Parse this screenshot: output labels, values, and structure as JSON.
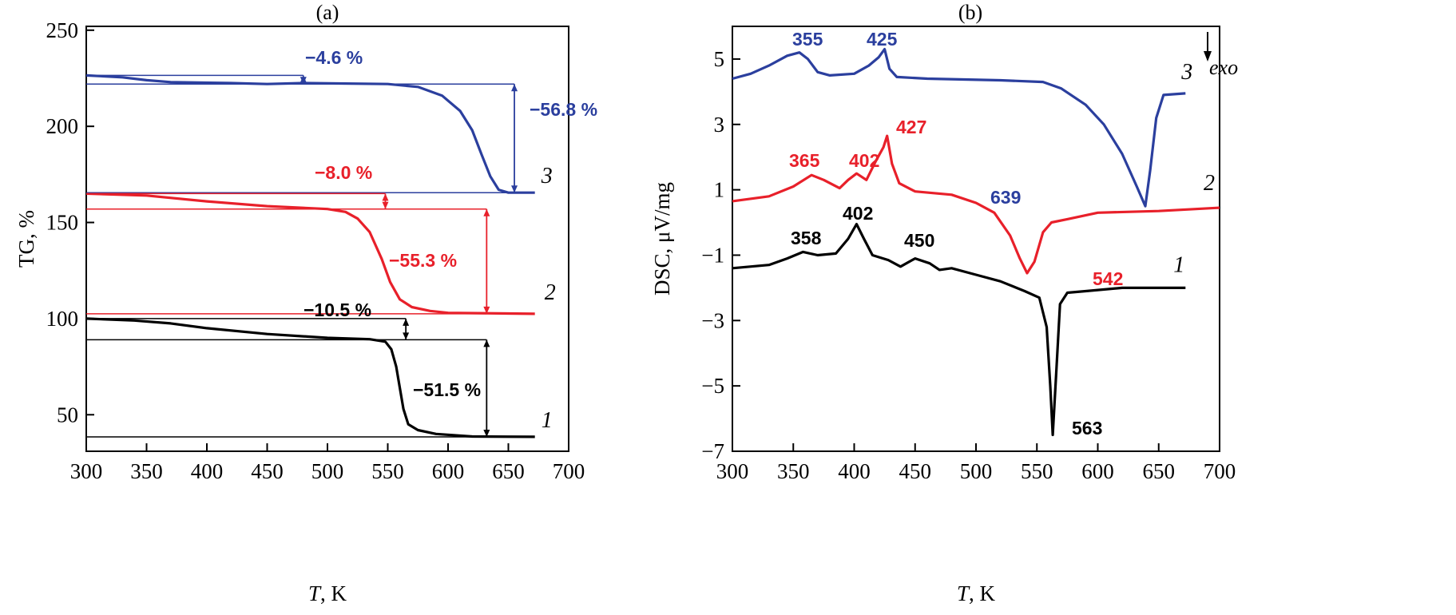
{
  "chart_data": [
    {
      "type": "line",
      "title": "(a)",
      "xlabel_italic": "T",
      "xlabel_rest": ", K",
      "ylabel": "TG, %",
      "xlim": [
        300,
        700
      ],
      "ylim": [
        31,
        252
      ],
      "xticks": [
        300,
        350,
        400,
        450,
        500,
        550,
        600,
        650,
        700
      ],
      "yticks": [
        50,
        100,
        150,
        200,
        250
      ],
      "series": [
        {
          "name": "3",
          "color": "#2b3f9e",
          "points": [
            [
              300,
              226.5
            ],
            [
              330,
              225.5
            ],
            [
              350,
              224
            ],
            [
              370,
              223
            ],
            [
              420,
              222.5
            ],
            [
              450,
              222
            ],
            [
              480,
              222.5
            ],
            [
              550,
              222
            ],
            [
              575,
              220.5
            ],
            [
              595,
              216
            ],
            [
              610,
              208
            ],
            [
              620,
              198
            ],
            [
              628,
              185
            ],
            [
              635,
              174
            ],
            [
              642,
              167
            ],
            [
              650,
              165.5
            ],
            [
              672,
              165.5
            ]
          ]
        },
        {
          "name": "2",
          "color": "#e8202a",
          "points": [
            [
              300,
              165
            ],
            [
              350,
              164
            ],
            [
              400,
              161
            ],
            [
              450,
              158.5
            ],
            [
              500,
              157
            ],
            [
              515,
              155.5
            ],
            [
              525,
              152
            ],
            [
              535,
              145
            ],
            [
              545,
              131
            ],
            [
              552,
              119
            ],
            [
              560,
              110
            ],
            [
              570,
              106
            ],
            [
              585,
              104
            ],
            [
              600,
              103
            ],
            [
              672,
              102.5
            ]
          ]
        },
        {
          "name": "1",
          "color": "#000000",
          "points": [
            [
              300,
              100
            ],
            [
              340,
              99
            ],
            [
              370,
              97.5
            ],
            [
              400,
              95
            ],
            [
              450,
              92
            ],
            [
              500,
              90
            ],
            [
              535,
              89.3
            ],
            [
              548,
              88
            ],
            [
              553,
              84
            ],
            [
              557,
              75
            ],
            [
              560,
              64
            ],
            [
              563,
              53
            ],
            [
              567,
              45
            ],
            [
              575,
              42
            ],
            [
              590,
              40
            ],
            [
              620,
              38.7
            ],
            [
              672,
              38.5
            ]
          ]
        }
      ],
      "annotations": [
        {
          "label": "−4.6 %",
          "color": "#2b3f9e",
          "t": 480,
          "from": 226.5,
          "to": 222,
          "ref_end": 480
        },
        {
          "label": "−56.8 %",
          "color": "#2b3f9e",
          "t": 655,
          "from": 222,
          "to": 165.5,
          "ref_end": 655
        },
        {
          "label": "−8.0 %",
          "color": "#e8202a",
          "t": 548,
          "from": 165,
          "to": 157,
          "ref_end": 548
        },
        {
          "label": "−55.3 %",
          "color": "#e8202a",
          "t": 632,
          "from": 157,
          "to": 102.5,
          "ref_end": 632
        },
        {
          "label": "−10.5 %",
          "color": "#000000",
          "t": 565,
          "from": 100,
          "to": 89,
          "ref_end": 565
        },
        {
          "label": "−51.5 %",
          "color": "#000000",
          "t": 632,
          "from": 89,
          "to": 38.5,
          "ref_end": 632
        }
      ]
    },
    {
      "type": "line",
      "title": "(b)",
      "xlabel_italic": "T",
      "xlabel_rest": ", K",
      "ylabel": "DSC, μV/mg",
      "xlim": [
        300,
        700
      ],
      "ylim": [
        -7,
        6
      ],
      "xticks": [
        300,
        350,
        400,
        450,
        500,
        550,
        600,
        650,
        700
      ],
      "yticks": [
        -7,
        -5,
        -3,
        -1,
        1,
        3,
        5
      ],
      "exo_label": "exo",
      "series": [
        {
          "name": "3",
          "color": "#2b3f9e",
          "points": [
            [
              300,
              4.4
            ],
            [
              315,
              4.55
            ],
            [
              330,
              4.8
            ],
            [
              345,
              5.1
            ],
            [
              355,
              5.2
            ],
            [
              362,
              5.0
            ],
            [
              370,
              4.6
            ],
            [
              380,
              4.5
            ],
            [
              400,
              4.55
            ],
            [
              412,
              4.8
            ],
            [
              420,
              5.05
            ],
            [
              425,
              5.3
            ],
            [
              429,
              4.7
            ],
            [
              435,
              4.45
            ],
            [
              460,
              4.4
            ],
            [
              520,
              4.35
            ],
            [
              555,
              4.3
            ],
            [
              570,
              4.1
            ],
            [
              590,
              3.6
            ],
            [
              605,
              3.0
            ],
            [
              620,
              2.1
            ],
            [
              632,
              1.1
            ],
            [
              639,
              0.5
            ],
            [
              643,
              1.6
            ],
            [
              648,
              3.2
            ],
            [
              654,
              3.9
            ],
            [
              672,
              3.95
            ]
          ]
        },
        {
          "name": "2",
          "color": "#e8202a",
          "points": [
            [
              300,
              0.65
            ],
            [
              330,
              0.8
            ],
            [
              350,
              1.1
            ],
            [
              365,
              1.45
            ],
            [
              375,
              1.3
            ],
            [
              388,
              1.05
            ],
            [
              395,
              1.3
            ],
            [
              402,
              1.5
            ],
            [
              410,
              1.3
            ],
            [
              418,
              1.9
            ],
            [
              424,
              2.3
            ],
            [
              427,
              2.65
            ],
            [
              431,
              1.8
            ],
            [
              437,
              1.2
            ],
            [
              450,
              0.95
            ],
            [
              480,
              0.85
            ],
            [
              500,
              0.6
            ],
            [
              515,
              0.3
            ],
            [
              528,
              -0.4
            ],
            [
              536,
              -1.1
            ],
            [
              542,
              -1.55
            ],
            [
              548,
              -1.2
            ],
            [
              555,
              -0.3
            ],
            [
              562,
              0.0
            ],
            [
              575,
              0.1
            ],
            [
              600,
              0.3
            ],
            [
              650,
              0.35
            ],
            [
              700,
              0.45
            ]
          ]
        },
        {
          "name": "1",
          "color": "#000000",
          "points": [
            [
              300,
              -1.4
            ],
            [
              330,
              -1.3
            ],
            [
              345,
              -1.1
            ],
            [
              358,
              -0.9
            ],
            [
              370,
              -1.0
            ],
            [
              385,
              -0.95
            ],
            [
              395,
              -0.5
            ],
            [
              402,
              -0.05
            ],
            [
              408,
              -0.5
            ],
            [
              415,
              -1.0
            ],
            [
              428,
              -1.15
            ],
            [
              438,
              -1.35
            ],
            [
              450,
              -1.1
            ],
            [
              462,
              -1.25
            ],
            [
              470,
              -1.45
            ],
            [
              480,
              -1.4
            ],
            [
              500,
              -1.6
            ],
            [
              520,
              -1.8
            ],
            [
              540,
              -2.1
            ],
            [
              552,
              -2.3
            ],
            [
              558,
              -3.2
            ],
            [
              561,
              -5.0
            ],
            [
              563,
              -6.5
            ],
            [
              566,
              -4.5
            ],
            [
              569,
              -2.5
            ],
            [
              575,
              -2.15
            ],
            [
              590,
              -2.1
            ],
            [
              620,
              -2.0
            ],
            [
              672,
              -2.0
            ]
          ]
        }
      ],
      "peak_labels": [
        {
          "label": "355",
          "color": "#2b3f9e"
        },
        {
          "label": "425",
          "color": "#2b3f9e"
        },
        {
          "label": "639",
          "color": "#2b3f9e"
        },
        {
          "label": "365",
          "color": "#e8202a"
        },
        {
          "label": "402",
          "color": "#e8202a"
        },
        {
          "label": "427",
          "color": "#e8202a"
        },
        {
          "label": "542",
          "color": "#e8202a"
        },
        {
          "label": "358",
          "color": "#000000"
        },
        {
          "label": "402",
          "color": "#000000"
        },
        {
          "label": "450",
          "color": "#000000"
        },
        {
          "label": "563",
          "color": "#000000"
        }
      ]
    }
  ]
}
